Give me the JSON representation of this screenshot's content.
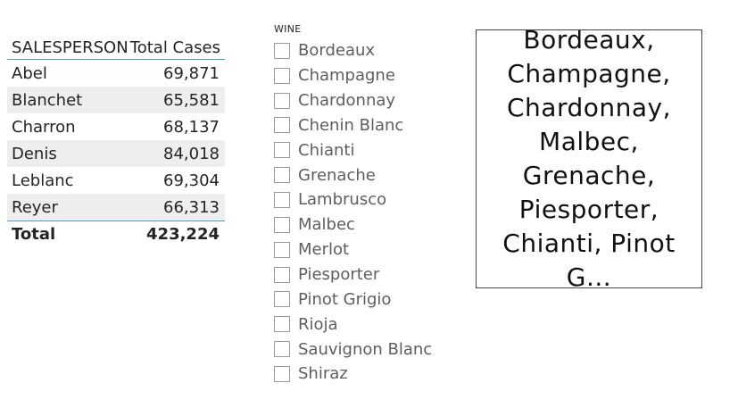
{
  "table": {
    "headers": {
      "name": "SALESPERSON",
      "value": "Total Cases"
    },
    "rows": [
      {
        "name": "Abel",
        "value": "69,871"
      },
      {
        "name": "Blanchet",
        "value": "65,581"
      },
      {
        "name": "Charron",
        "value": "68,137"
      },
      {
        "name": "Denis",
        "value": "84,018"
      },
      {
        "name": "Leblanc",
        "value": "69,304"
      },
      {
        "name": "Reyer",
        "value": "66,313"
      }
    ],
    "total": {
      "label": "Total",
      "value": "423,224"
    },
    "accent_color": "#4a9fbf",
    "alt_row_color": "#eeeeee"
  },
  "slicer": {
    "title": "WINE",
    "items": [
      "Bordeaux",
      "Champagne",
      "Chardonnay",
      "Chenin Blanc",
      "Chianti",
      "Grenache",
      "Lambrusco",
      "Malbec",
      "Merlot",
      "Piesporter",
      "Pinot Grigio",
      "Rioja",
      "Sauvignon Blanc",
      "Shiraz"
    ],
    "checked": []
  },
  "card": {
    "lines": [
      "Bordeaux,",
      "Champagne,",
      "Chardonnay,",
      "Malbec,",
      "Grenache,",
      "Piesporter,",
      "Chianti, Pinot G..."
    ]
  }
}
